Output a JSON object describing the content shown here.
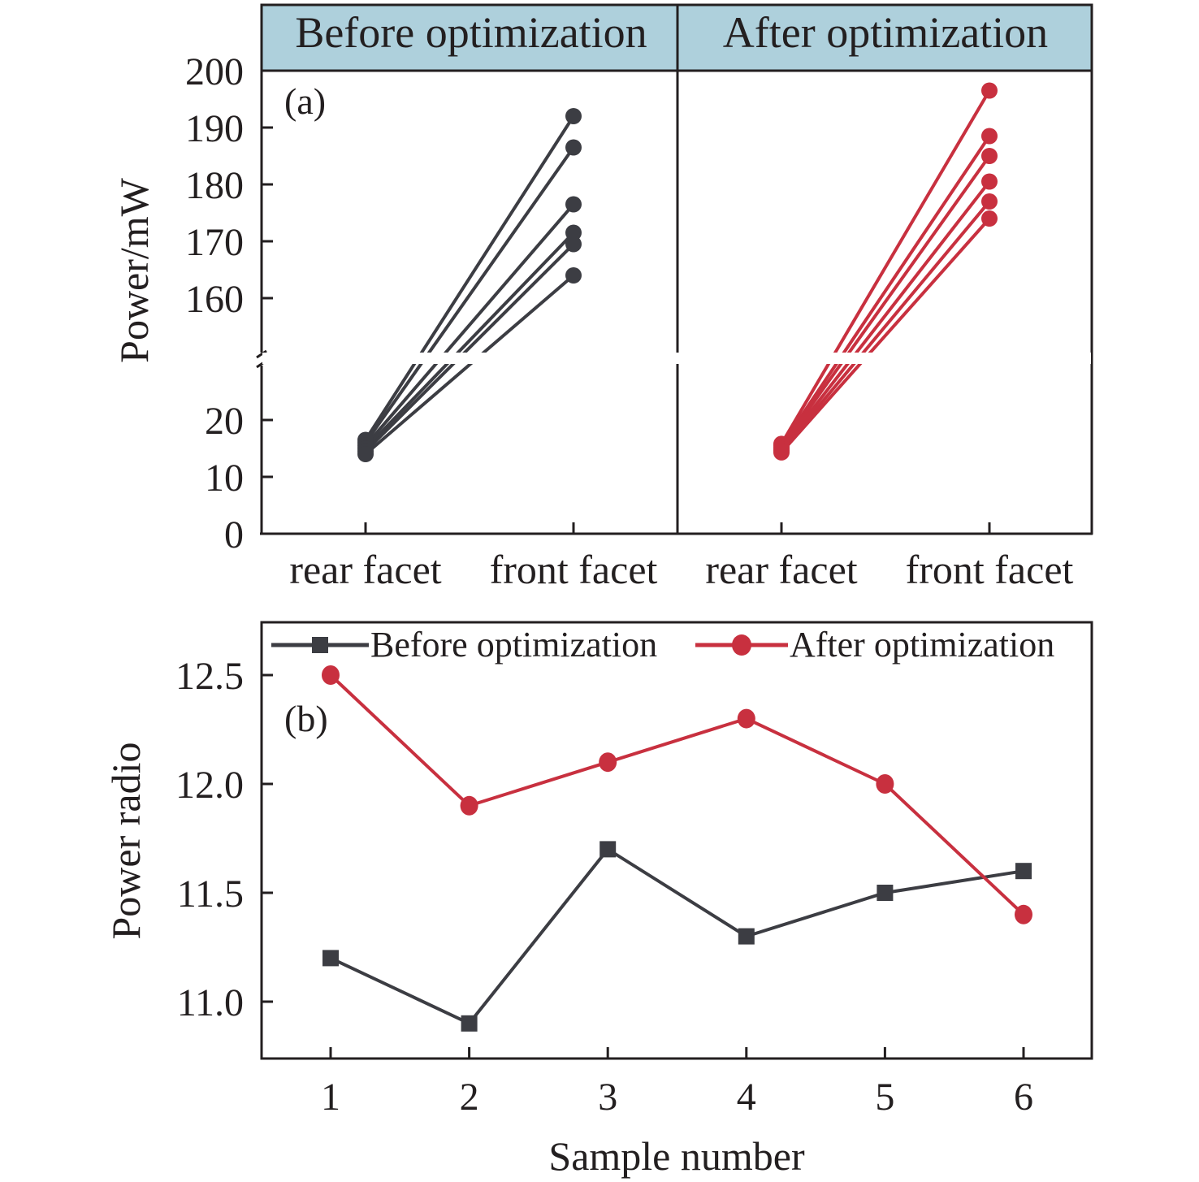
{
  "chart_data": [
    {
      "id": "a",
      "type": "line",
      "panel_label": "(a)",
      "ylabel": "Power/mW",
      "y_ticks_upper": [
        "160",
        "170",
        "180",
        "190",
        "200"
      ],
      "y_ticks_lower": [
        "0",
        "10",
        "20"
      ],
      "y_axis_break": [
        25,
        150
      ],
      "ylim": [
        0,
        200
      ],
      "categories": [
        "rear facet",
        "front facet"
      ],
      "panels": [
        {
          "name": "Before optimization",
          "color": "#3c3d43",
          "series": [
            {
              "rear": 16.5,
              "front": 192.0
            },
            {
              "rear": 16.0,
              "front": 186.5
            },
            {
              "rear": 15.5,
              "front": 176.5
            },
            {
              "rear": 15.0,
              "front": 171.5
            },
            {
              "rear": 14.5,
              "front": 169.5
            },
            {
              "rear": 14.0,
              "front": 164.0
            }
          ]
        },
        {
          "name": "After optimization",
          "color": "#c8303f",
          "series": [
            {
              "rear": 15.8,
              "front": 196.5
            },
            {
              "rear": 15.5,
              "front": 188.5
            },
            {
              "rear": 15.2,
              "front": 185.0
            },
            {
              "rear": 14.9,
              "front": 180.5
            },
            {
              "rear": 14.6,
              "front": 177.0
            },
            {
              "rear": 14.3,
              "front": 174.0
            }
          ]
        }
      ]
    },
    {
      "id": "b",
      "type": "line",
      "panel_label": "(b)",
      "xlabel": "Sample number",
      "ylabel": "Power radio",
      "x": [
        1,
        2,
        3,
        4,
        5,
        6
      ],
      "x_tick_labels": [
        "1",
        "2",
        "3",
        "4",
        "5",
        "6"
      ],
      "y_ticks": [
        "11.0",
        "11.5",
        "12.0",
        "12.5"
      ],
      "ylim": [
        10.74,
        12.75
      ],
      "legend_position": "top",
      "series": [
        {
          "name": "Before optimization",
          "marker": "square",
          "color": "#3c3d43",
          "values": [
            11.2,
            10.9,
            11.7,
            11.3,
            11.5,
            11.6
          ]
        },
        {
          "name": "After optimization",
          "marker": "circle",
          "color": "#c8303f",
          "values": [
            12.5,
            11.9,
            12.1,
            12.3,
            12.0,
            11.4
          ]
        }
      ]
    }
  ],
  "header_color": "#aed0dc"
}
